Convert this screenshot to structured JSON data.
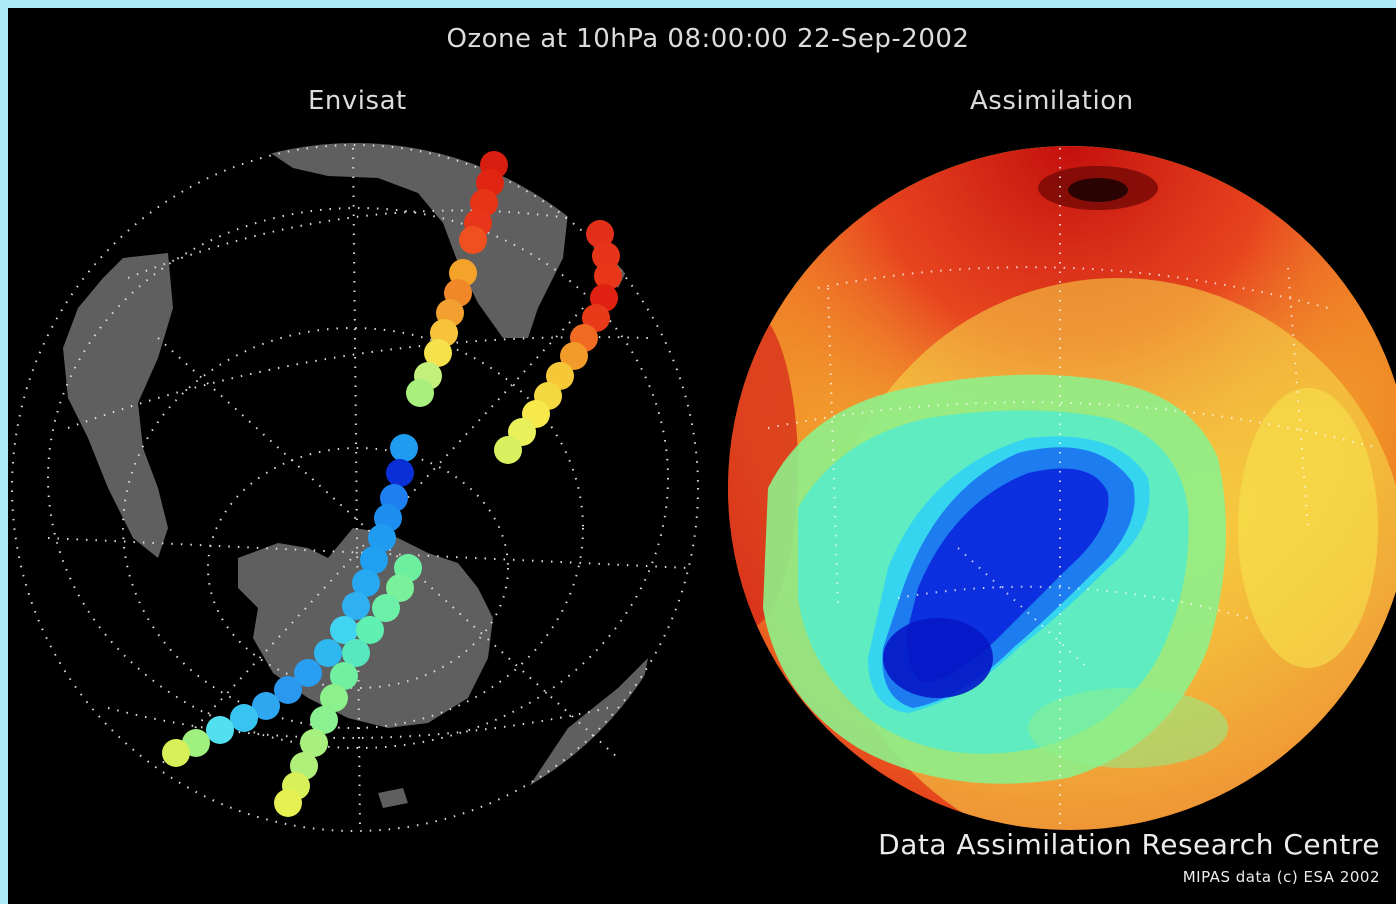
{
  "title": "Ozone at 10hPa 08:00:00 22-Sep-2002",
  "panels": {
    "left_title": "Envisat",
    "right_title": "Assimilation"
  },
  "credit": {
    "line1": "Data Assimilation Research Centre",
    "line2": "MIPAS data (c) ESA 2002"
  },
  "colors": {
    "background_border": "#aee9f7",
    "land": "#5f5f5f",
    "grid": "#dddddd"
  }
}
